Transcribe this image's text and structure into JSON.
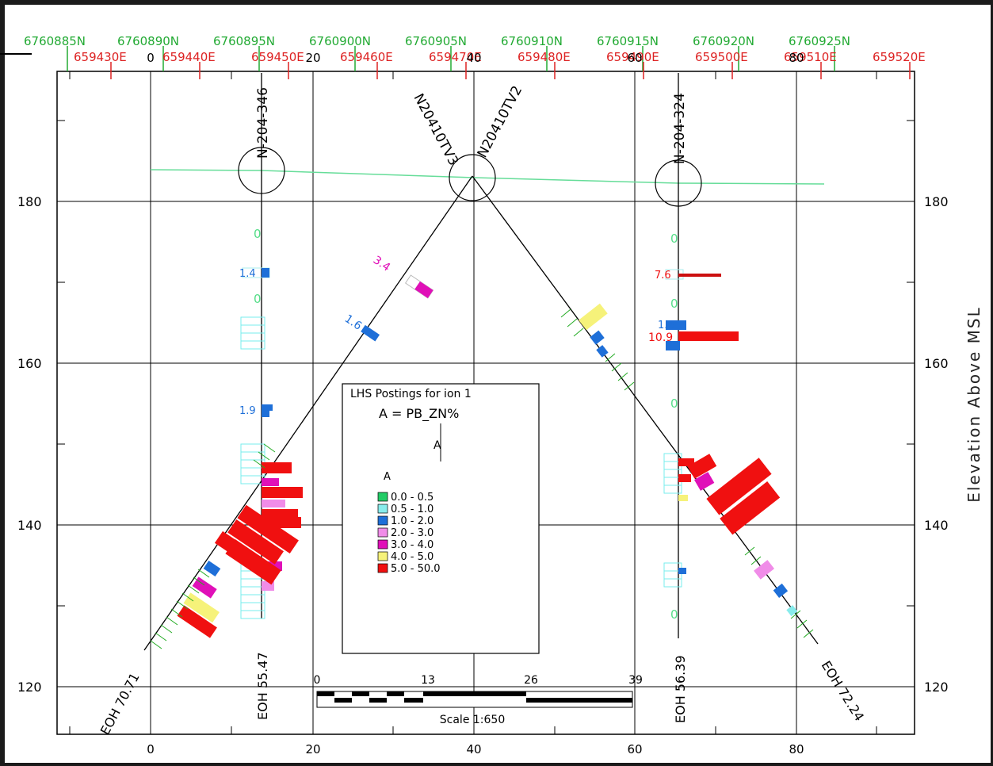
{
  "northings": [
    "6760885N",
    "6760890N",
    "6760895N",
    "6760900N",
    "6760905N",
    "6760910N",
    "6760915N",
    "6760920N",
    "6760925N"
  ],
  "eastings": [
    "659430E",
    "659440E",
    "659450E",
    "659460E",
    "659470E",
    "659480E",
    "659490E",
    "659500E",
    "659510E",
    "659520E"
  ],
  "x_ticks": [
    "0",
    "20",
    "40",
    "60",
    "80"
  ],
  "y_ticks": [
    "120",
    "140",
    "160",
    "180"
  ],
  "ylabel": "Elevation Above MSL",
  "holes": {
    "n204_346": "N-204-346",
    "n204_324": "N-204-324",
    "tv3": "N20410TV3",
    "tv2": "N20410TV2"
  },
  "eoh": {
    "tv3": "EOH 70.71",
    "n346": "EOH 55.47",
    "n324": "EOH 56.39",
    "tv2": "EOH 72.24"
  },
  "legend": {
    "title": "LHS Postings for ion 1",
    "formula": "A = PB_ZN%",
    "symbol": "A",
    "key": "A",
    "ranges": [
      {
        "label": "0.0 - 0.5",
        "color": "#22cc66"
      },
      {
        "label": "0.5 - 1.0",
        "color": "#88ecec"
      },
      {
        "label": "1.0 - 2.0",
        "color": "#1e6fd8"
      },
      {
        "label": "2.0 - 3.0",
        "color": "#f08ce8"
      },
      {
        "label": "3.0 - 4.0",
        "color": "#e010b8"
      },
      {
        "label": "4.0 - 5.0",
        "color": "#f6f27a"
      },
      {
        "label": "5.0 - 50.0",
        "color": "#f01010"
      }
    ]
  },
  "scalebar": {
    "ticks": [
      "0",
      "13",
      "26",
      "39"
    ],
    "label": "Scale 1:650"
  },
  "postings": {
    "tv3_a": "3.4",
    "tv3_b": "1.6",
    "n346_a": "1.4",
    "n346_b": "1.9",
    "n324_a": "7.6",
    "n324_b": "1.6",
    "n324_c": "10.9",
    "z0": "0"
  }
}
